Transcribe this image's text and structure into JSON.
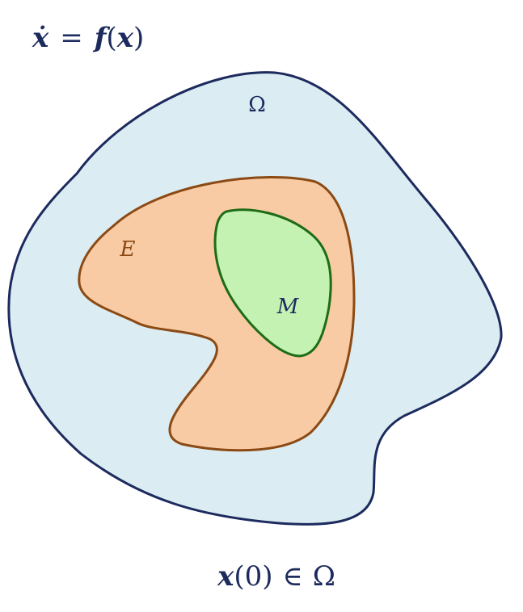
{
  "title_equation": {
    "lhs": "ẋ",
    "equals": "=",
    "rhs_func": "f",
    "rhs_open": "(",
    "rhs_var": "x",
    "rhs_close": ")"
  },
  "condition_equation": {
    "var": "x",
    "arg": "(0)",
    "member": "∈",
    "set": "Ω"
  },
  "regions": {
    "outer": {
      "label": "Ω",
      "fill": "#dbecf2",
      "stroke": "#1c2a5e"
    },
    "middle": {
      "label": "E",
      "fill": "#f8cba4",
      "stroke": "#8b4a14"
    },
    "inner": {
      "label": "M",
      "fill": "#c3f2b3",
      "stroke": "#1f6b16"
    }
  },
  "text_color": "#1c2a5e"
}
